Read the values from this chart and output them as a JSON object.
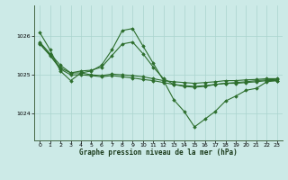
{
  "title": "Graphe pression niveau de la mer (hPa)",
  "bg_color": "#cceae7",
  "grid_color": "#aad4ce",
  "line_color": "#2d6e2d",
  "marker_color": "#2d6e2d",
  "xlim": [
    -0.5,
    23.5
  ],
  "ylim": [
    1023.3,
    1026.8
  ],
  "yticks": [
    1024,
    1025,
    1026
  ],
  "xticks": [
    0,
    1,
    2,
    3,
    4,
    5,
    6,
    7,
    8,
    9,
    10,
    11,
    12,
    13,
    14,
    15,
    16,
    17,
    18,
    19,
    20,
    21,
    22,
    23
  ],
  "series": [
    {
      "x": [
        0,
        1,
        2,
        3,
        4,
        5,
        6,
        7,
        8,
        9,
        10,
        11,
        12,
        13,
        14,
        15,
        16,
        17,
        18,
        19,
        20,
        21,
        22,
        23
      ],
      "y": [
        1025.85,
        1025.55,
        1025.25,
        1025.05,
        1025.05,
        1025.0,
        1024.98,
        1025.02,
        1025.0,
        1024.98,
        1024.95,
        1024.9,
        1024.85,
        1024.82,
        1024.8,
        1024.78,
        1024.8,
        1024.82,
        1024.85,
        1024.85,
        1024.87,
        1024.88,
        1024.9,
        1024.9
      ]
    },
    {
      "x": [
        0,
        1,
        2,
        3,
        4,
        5,
        6,
        7,
        8,
        9,
        10,
        11,
        12,
        13,
        14,
        15,
        16,
        17,
        18,
        19,
        20,
        21,
        22,
        23
      ],
      "y": [
        1025.8,
        1025.5,
        1025.15,
        1025.0,
        1025.0,
        1024.98,
        1024.95,
        1024.98,
        1024.95,
        1024.92,
        1024.88,
        1024.85,
        1024.8,
        1024.75,
        1024.72,
        1024.7,
        1024.72,
        1024.75,
        1024.78,
        1024.78,
        1024.8,
        1024.82,
        1024.85,
        1024.85
      ]
    },
    {
      "x": [
        0,
        1,
        2,
        3,
        4,
        5,
        6,
        7,
        8,
        9,
        10,
        11,
        12,
        13,
        14,
        15,
        16,
        17,
        18,
        19,
        20,
        21,
        22,
        23
      ],
      "y": [
        1025.82,
        1025.52,
        1025.18,
        1025.05,
        1025.1,
        1025.12,
        1025.2,
        1025.5,
        1025.8,
        1025.85,
        1025.55,
        1025.2,
        1024.9,
        1024.75,
        1024.7,
        1024.68,
        1024.7,
        1024.75,
        1024.78,
        1024.8,
        1024.82,
        1024.85,
        1024.87,
        1024.88
      ]
    },
    {
      "x": [
        0,
        1,
        2,
        3,
        4,
        5,
        6,
        7,
        8,
        9,
        10,
        11,
        12,
        13,
        14,
        15,
        16,
        17,
        18,
        19,
        20,
        21,
        22,
        23
      ],
      "y": [
        1026.1,
        1025.65,
        1025.1,
        1024.85,
        1025.05,
        1025.1,
        1025.25,
        1025.65,
        1026.15,
        1026.2,
        1025.75,
        1025.3,
        1024.85,
        1024.35,
        1024.05,
        1023.65,
        1023.85,
        1024.05,
        1024.32,
        1024.45,
        1024.6,
        1024.65,
        1024.82,
        1024.85
      ]
    }
  ]
}
